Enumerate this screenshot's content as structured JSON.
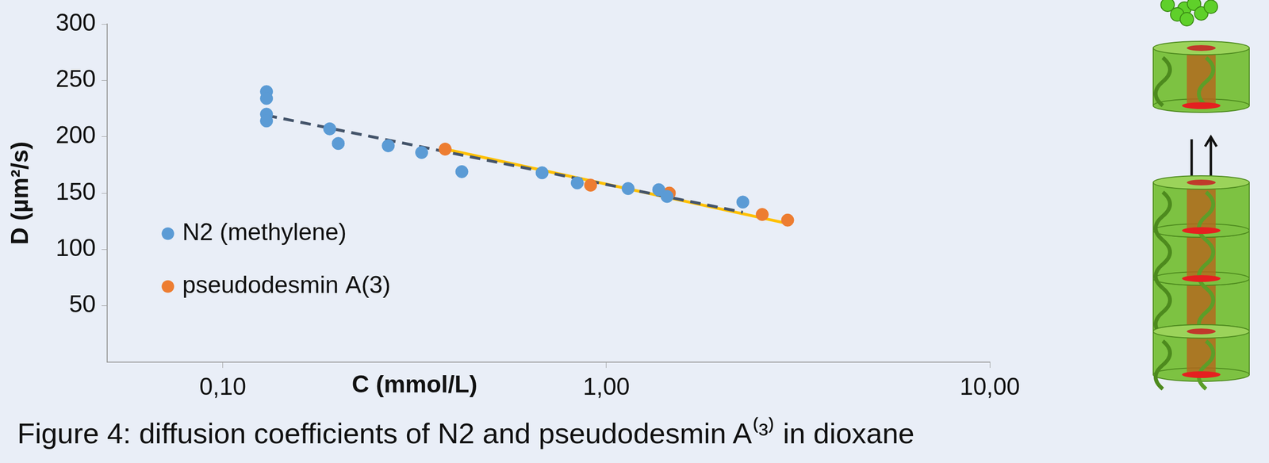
{
  "chart_data": {
    "type": "scatter",
    "title": "Figure 4: diffusion coefficients of N2 and pseudodesmin A⁽³⁾ in dioxane",
    "x_label": "C (mmol/L)",
    "y_label": "D (µm²/s)",
    "log": "x",
    "xlim": [
      0.05,
      10
    ],
    "xticks": [
      {
        "value": 0.1,
        "label": "0,10"
      },
      {
        "value": 1,
        "label": "1,00"
      },
      {
        "value": 10,
        "label": "10,00"
      }
    ],
    "ylim": [
      0,
      300
    ],
    "yticks": [
      50,
      100,
      150,
      200,
      250,
      300
    ],
    "grid": false,
    "legend": "left",
    "series": [
      {
        "name": "N2 (methylene)",
        "color": "#5b9bd5",
        "marker": "circle",
        "x": [
          0.13,
          0.13,
          0.13,
          0.13,
          0.19,
          0.2,
          0.27,
          0.33,
          0.42,
          0.68,
          0.84,
          1.14,
          1.37,
          1.44,
          2.27
        ],
        "values": [
          240,
          234,
          220,
          214,
          207,
          194,
          192,
          186,
          169,
          168,
          159,
          154,
          153,
          147,
          142
        ],
        "trend": {
          "x": [
            0.13,
            2.27
          ],
          "values": [
            219,
            133
          ],
          "color": "#44546a",
          "line_style": "dashed"
        }
      },
      {
        "name": "pseudodesmin A(3)",
        "color": "#ed7d31",
        "marker": "circle",
        "x": [
          0.38,
          0.91,
          1.46,
          2.55,
          2.97
        ],
        "values": [
          189,
          157,
          150,
          131,
          126
        ],
        "trend": {
          "x": [
            0.38,
            2.97
          ],
          "values": [
            189,
            123
          ],
          "color": "#ffc000",
          "line_style": "solid"
        }
      }
    ]
  }
}
